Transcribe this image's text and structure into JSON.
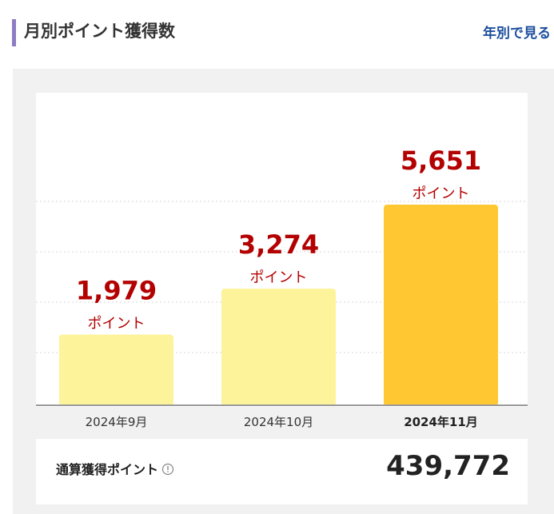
{
  "header": {
    "title": "月別ポイント獲得数",
    "yearly_link": "年別で見る"
  },
  "colors": {
    "accent": "#8e7cc3",
    "link": "#1d4e9e",
    "value_red": "#b30000",
    "bar_light": "#fdf39a",
    "bar_current": "#ffc832",
    "panel_bg": "#f1f1f1"
  },
  "chart_data": {
    "type": "bar",
    "categories": [
      "2024年9月",
      "2024年10月",
      "2024年11月"
    ],
    "values": [
      1979,
      3274,
      5651
    ],
    "value_labels": [
      "1,979",
      "3,274",
      "5,651"
    ],
    "unit_label": "ポイント",
    "highlight_index": 2,
    "ylim": [
      0,
      8500
    ],
    "grid": true
  },
  "total": {
    "label": "通算獲得ポイント",
    "info_icon": "info-circle-icon",
    "value": "439,772"
  }
}
